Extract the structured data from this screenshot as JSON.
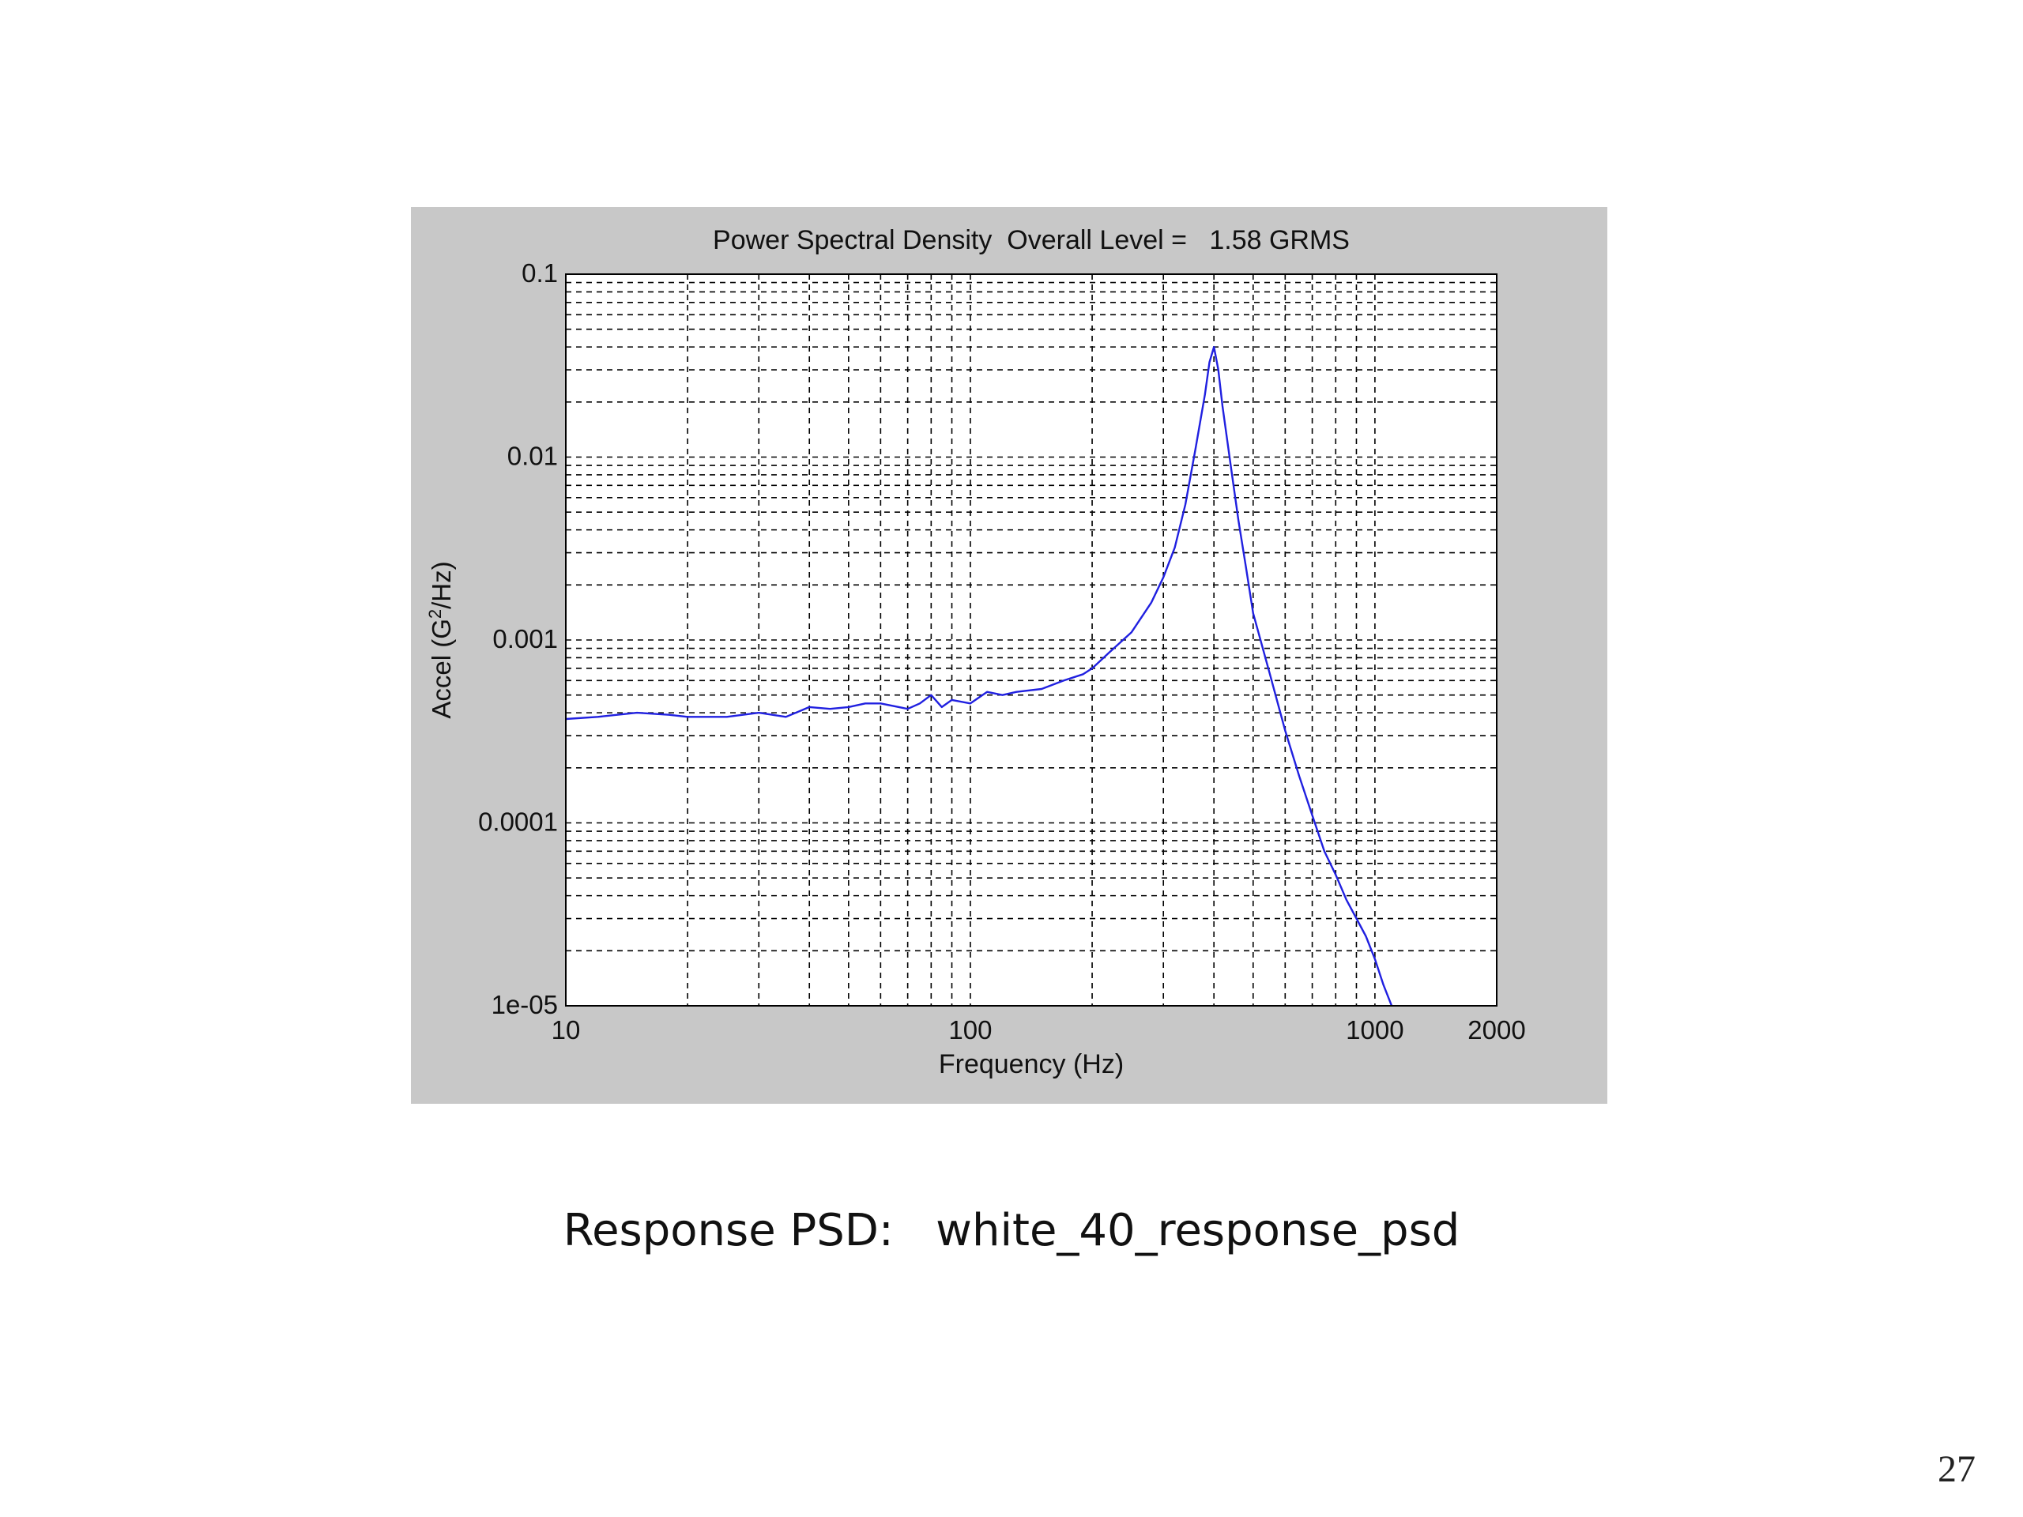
{
  "slide": {
    "caption_label": "Response PSD:",
    "caption_name": "white_40_response_psd",
    "page_number": "27"
  },
  "chart_data": {
    "type": "line",
    "title": "Power Spectral Density  Overall Level =   1.58 GRMS",
    "xlabel": "Frequency (Hz)",
    "ylabel_main": "Accel (G",
    "ylabel_sup": "2",
    "ylabel_tail": "/Hz)",
    "x_scale": "log",
    "y_scale": "log",
    "xlim": [
      10,
      2000
    ],
    "ylim": [
      1e-05,
      0.1
    ],
    "x_ticks": [
      {
        "value": 10,
        "label": "10"
      },
      {
        "value": 100,
        "label": "100"
      },
      {
        "value": 1000,
        "label": "1000"
      },
      {
        "value": 2000,
        "label": "2000"
      }
    ],
    "y_ticks": [
      {
        "value": 0.1,
        "label": "0.1"
      },
      {
        "value": 0.01,
        "label": "0.01"
      },
      {
        "value": 0.001,
        "label": "0.001"
      },
      {
        "value": 0.0001,
        "label": "0.0001"
      },
      {
        "value": 1e-05,
        "label": "1e-05"
      }
    ],
    "grid": true,
    "colors": {
      "line": "#2020e0",
      "figure_bg": "#c8c8c8",
      "plot_bg": "#ffffff"
    },
    "series": [
      {
        "x": [
          10,
          12,
          15,
          18,
          20,
          25,
          30,
          35,
          40,
          45,
          50,
          55,
          60,
          70,
          75,
          80,
          85,
          90,
          100,
          110,
          120,
          130,
          150,
          170,
          190,
          200,
          220,
          250,
          280,
          300,
          320,
          340,
          360,
          380,
          390,
          400,
          410,
          420,
          440,
          460,
          480,
          500,
          550,
          600,
          650,
          700,
          750,
          800,
          850,
          900,
          950,
          1000,
          1050,
          1100
        ],
        "y": [
          0.00037,
          0.00038,
          0.0004,
          0.00039,
          0.00038,
          0.00038,
          0.0004,
          0.00038,
          0.00043,
          0.00042,
          0.00043,
          0.00045,
          0.00045,
          0.00042,
          0.00045,
          0.0005,
          0.00043,
          0.00047,
          0.00045,
          0.00052,
          0.0005,
          0.00052,
          0.00054,
          0.0006,
          0.00065,
          0.0007,
          0.00085,
          0.0011,
          0.0016,
          0.0022,
          0.0032,
          0.0055,
          0.011,
          0.022,
          0.033,
          0.04,
          0.03,
          0.019,
          0.009,
          0.0045,
          0.0025,
          0.0014,
          0.00065,
          0.00032,
          0.00018,
          0.00011,
          7e-05,
          5.2e-05,
          3.8e-05,
          3e-05,
          2.4e-05,
          1.8e-05,
          1.3e-05,
          1e-05
        ]
      }
    ]
  }
}
